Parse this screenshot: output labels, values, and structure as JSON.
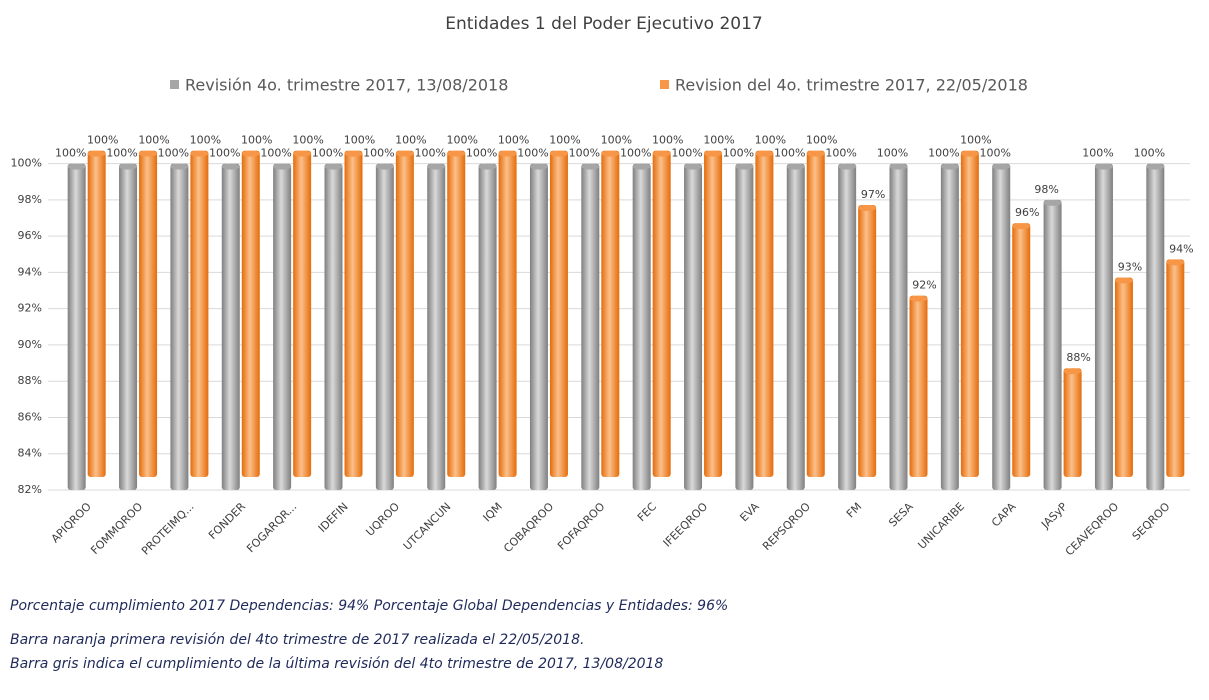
{
  "chart_data": {
    "type": "bar",
    "title": "Entidades 1 del Poder Ejecutivo 2017",
    "categories": [
      "APIQROO",
      "FOMMQROO",
      "PROTEIMQ...",
      "FONDER",
      "FOGARQR...",
      "IDEFIN",
      "UQROO",
      "UTCANCUN",
      "IQM",
      "COBAQROO",
      "FOFAQROO",
      "FEC",
      "IFEEQROO",
      "EVA",
      "REPSQROO",
      "FM",
      "SESA",
      "UNICARIBE",
      "CAPA",
      "JASyP",
      "CEAVEQROO",
      "SEQROO"
    ],
    "series": [
      {
        "name": "Revisión 4o. trimestre 2017, 13/08/2018",
        "color": "#a6a6a6",
        "values": [
          100,
          100,
          100,
          100,
          100,
          100,
          100,
          100,
          100,
          100,
          100,
          100,
          100,
          100,
          100,
          100,
          100,
          100,
          100,
          98,
          100,
          100
        ],
        "value_labels": [
          "100%",
          "100%",
          "100%",
          "100%",
          "100%",
          "100%",
          "100%",
          "100%",
          "100%",
          "100%",
          "100%",
          "100%",
          "100%",
          "100%",
          "100%",
          "100%",
          "100%",
          "100%",
          "100%",
          "98%",
          "100%",
          "100%"
        ]
      },
      {
        "name": "Revision del 4o. trimestre 2017, 22/05/2018",
        "color": "#f79646",
        "values": [
          100,
          100,
          100,
          100,
          100,
          100,
          100,
          100,
          100,
          100,
          100,
          100,
          100,
          100,
          100,
          97,
          92,
          100,
          96,
          88,
          93,
          94
        ],
        "value_labels": [
          "100%",
          "100%",
          "100%",
          "100%",
          "100%",
          "100%",
          "100%",
          "100%",
          "100%",
          "100%",
          "100%",
          "100%",
          "100%",
          "100%",
          "100%",
          "97%",
          "92%",
          "100%",
          "96%",
          "88%",
          "93%",
          "94%"
        ]
      }
    ],
    "ylim": [
      82,
      101.3
    ],
    "yticks": [
      {
        "value": 82,
        "label": "82%"
      },
      {
        "value": 84,
        "label": "84%"
      },
      {
        "value": 86,
        "label": "86%"
      },
      {
        "value": 88,
        "label": "88%"
      },
      {
        "value": 90,
        "label": "90%"
      },
      {
        "value": 92,
        "label": "92%"
      },
      {
        "value": 94,
        "label": "94%"
      },
      {
        "value": 96,
        "label": "96%"
      },
      {
        "value": 98,
        "label": "98%"
      },
      {
        "value": 100,
        "label": "100%"
      }
    ],
    "grid": true
  },
  "notes": [
    "Porcentaje  cumplimiento  2017  Dependencias:  94%    Porcentaje  Global  Dependencias  y  Entidades:  96%",
    "Barra  naranja  primera  revisión  del  4to  trimestre  de  2017  realizada  el  22/05/2018.",
    "Barra  gris  indica  el  cumplimiento  de  la  última  revisión  del  4to  trimestre  de  2017,  13/08/2018"
  ]
}
